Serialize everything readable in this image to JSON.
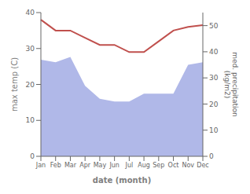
{
  "chart_data": {
    "type": "line",
    "categories": [
      "Jan",
      "Feb",
      "Mar",
      "Apr",
      "May",
      "Jun",
      "Jul",
      "Aug",
      "Sep",
      "Oct",
      "Nov",
      "Dec"
    ],
    "xlabel": "date (month)",
    "ylabel": "max temp (C)",
    "y2label": "med. precipitation\n(kg/m2)",
    "ylim": [
      0,
      40
    ],
    "yticks": [
      0,
      10,
      20,
      30,
      40
    ],
    "y2lim": [
      0,
      55
    ],
    "y2ticks": [
      0,
      10,
      20,
      30,
      40,
      50
    ],
    "series": [
      {
        "type": "area",
        "axis": "y2",
        "color": "#b0b8e8",
        "values": [
          37,
          36,
          38,
          27,
          22,
          21,
          21,
          24,
          24,
          24,
          35,
          36
        ]
      },
      {
        "type": "line",
        "color": "#c0504d",
        "values": [
          38.0,
          35.0,
          35.0,
          33.0,
          31.0,
          31.0,
          29.0,
          29.0,
          32.0,
          35.0,
          36.0,
          36.5
        ]
      }
    ]
  }
}
